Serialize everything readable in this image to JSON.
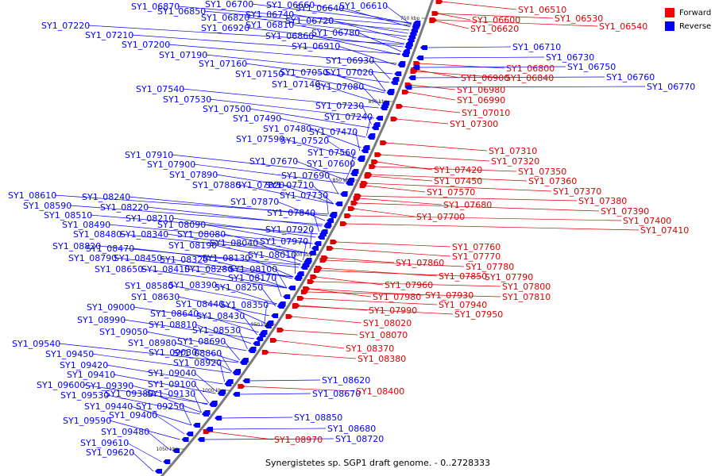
{
  "caption": "Synergistetes sp. SGP1 draft genome. - 0..2728333",
  "legend": [
    {
      "label": "Forward",
      "color": "#ff0000"
    },
    {
      "label": "Reverse",
      "color": "#0000ff"
    }
  ],
  "ticks": [
    "750 kbp",
    "800 kbp",
    "850 kbp",
    "900 kbp",
    "950 kbp",
    "1000 kbp",
    "1050 kbp"
  ],
  "reverse_labels": [
    "SY1_06870",
    "SY1_06850",
    "SY1_06700",
    "SY1_06660",
    "SY1_06640",
    "SY1_06610",
    "SY1_06820",
    "SY1_06740",
    "SY1_06720",
    "SY1_06920",
    "SY1_06810",
    "SY1_06780",
    "SY1_06860",
    "SY1_07220",
    "SY1_07210",
    "SY1_06910",
    "SY1_07200",
    "SY1_07190",
    "SY1_06930",
    "SY1_07160",
    "SY1_07050",
    "SY1_07020",
    "SY1_07150",
    "SY1_07140",
    "SY1_07080",
    "SY1_07540",
    "SY1_07530",
    "SY1_07230",
    "SY1_07500",
    "SY1_07240",
    "SY1_07490",
    "SY1_07480",
    "SY1_07470",
    "SY1_07590",
    "SY1_07520",
    "SY1_07560",
    "SY1_07910",
    "SY1_07900",
    "SY1_07670",
    "SY1_07600",
    "SY1_07890",
    "SY1_07690",
    "SY1_07710",
    "SY1_07880",
    "SY1_07820",
    "SY1_07730",
    "SY1_08610",
    "SY1_08240",
    "SY1_08590",
    "SY1_08220",
    "SY1_07870",
    "SY1_08510",
    "SY1_08210",
    "SY1_07840",
    "SY1_08490",
    "SY1_08090",
    "SY1_07920",
    "SY1_08480",
    "SY1_08340",
    "SY1_08080",
    "SY1_08820",
    "SY1_08470",
    "SY1_08190",
    "SY1_08040",
    "SY1_07970",
    "SY1_08790",
    "SY1_08450",
    "SY1_08320",
    "SY1_08130",
    "SY1_08010",
    "SY1_08650",
    "SY1_08410",
    "SY1_08280",
    "SY1_08100",
    "SY1_08170",
    "SY1_08580",
    "SY1_08390",
    "SY1_08250",
    "SY1_08630",
    "SY1_08440",
    "SY1_08350",
    "SY1_09000",
    "SY1_08640",
    "SY1_08430",
    "SY1_08990",
    "SY1_08810",
    "SY1_08530",
    "SY1_09050",
    "SY1_08690",
    "SY1_09540",
    "SY1_08980",
    "SY1_08860",
    "SY1_09450",
    "SY1_09030",
    "SY1_08920",
    "SY1_09420",
    "SY1_09410",
    "SY1_09040",
    "SY1_09600",
    "SY1_09390",
    "SY1_09100",
    "SY1_09530",
    "SY1_09380",
    "SY1_09130",
    "SY1_09440",
    "SY1_09250",
    "SY1_09590",
    "SY1_09400",
    "SY1_09480",
    "SY1_09610",
    "SY1_09620",
    "SY1_06710",
    "SY1_06730",
    "SY1_06750",
    "SY1_06760",
    "SY1_06770",
    "SY1_08620",
    "SY1_08670",
    "SY1_08850",
    "SY1_08680",
    "SY1_08720"
  ],
  "forward_labels": [
    "SY1_06510",
    "SY1_06600",
    "SY1_06530",
    "SY1_06620",
    "SY1_06540",
    "SY1_06800",
    "SY1_06900",
    "SY1_06840",
    "SY1_06980",
    "SY1_06990",
    "SY1_07010",
    "SY1_07300",
    "SY1_07310",
    "SY1_07320",
    "SY1_07350",
    "SY1_07420",
    "SY1_07360",
    "SY1_07450",
    "SY1_07370",
    "SY1_07570",
    "SY1_07380",
    "SY1_07390",
    "SY1_07680",
    "SY1_07400",
    "SY1_07700",
    "SY1_07410",
    "SY1_07760",
    "SY1_07770",
    "SY1_07780",
    "SY1_07860",
    "SY1_07850",
    "SY1_07790",
    "SY1_07800",
    "SY1_07960",
    "SY1_07930",
    "SY1_07810",
    "SY1_07980",
    "SY1_07940",
    "SY1_07990",
    "SY1_07950",
    "SY1_08020",
    "SY1_08070",
    "SY1_08370",
    "SY1_08380",
    "SY1_08400",
    "SY1_08970"
  ]
}
